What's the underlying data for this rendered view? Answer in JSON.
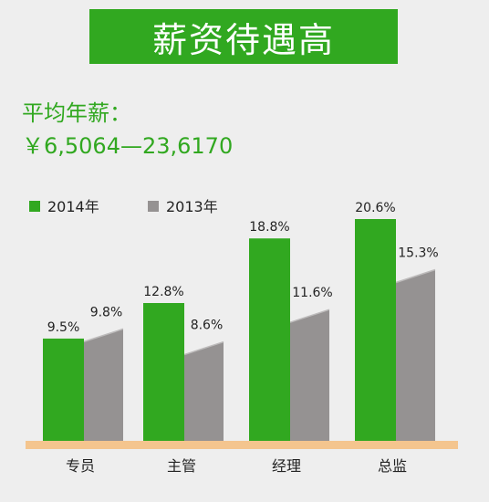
{
  "header": {
    "title": "薪资待遇高",
    "subtitle": "平均年薪：",
    "salary_range": "￥6,5064—23,6170"
  },
  "colors": {
    "green": "#31a820",
    "gray": "#959292",
    "gray_top": "#bdbbbb",
    "baseline": "#f4c58e",
    "background": "#eeeeee"
  },
  "chart_data": {
    "type": "bar",
    "categories": [
      "专员",
      "主管",
      "经理",
      "总监"
    ],
    "series": [
      {
        "name": "2014年",
        "values": [
          9.5,
          12.8,
          18.8,
          20.6
        ],
        "labels": [
          "9.5%",
          "12.8%",
          "18.8%",
          "20.6%"
        ]
      },
      {
        "name": "2013年",
        "values": [
          9.8,
          8.6,
          11.6,
          15.3
        ],
        "labels": [
          "9.8%",
          "8.6%",
          "11.6%",
          "15.3%"
        ]
      }
    ],
    "legend_position": "top-left",
    "ylim": [
      0,
      22
    ]
  }
}
